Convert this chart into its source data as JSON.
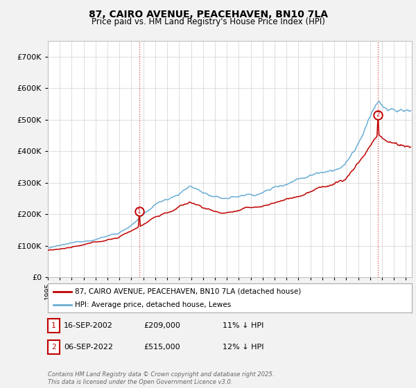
{
  "title": "87, CAIRO AVENUE, PEACEHAVEN, BN10 7LA",
  "subtitle": "Price paid vs. HM Land Registry's House Price Index (HPI)",
  "ylim": [
    0,
    750000
  ],
  "yticks": [
    0,
    100000,
    200000,
    300000,
    400000,
    500000,
    600000,
    700000
  ],
  "hpi_color": "#6aaed6",
  "price_color": "#C00000",
  "marker1_price": 209000,
  "marker2_price": 515000,
  "marker1_year": 2002.708,
  "marker2_year": 2022.708,
  "legend_line1": "87, CAIRO AVENUE, PEACEHAVEN, BN10 7LA (detached house)",
  "legend_line2": "HPI: Average price, detached house, Lewes",
  "annotation1_date": "16-SEP-2002",
  "annotation1_price": "£209,000",
  "annotation1_hpi": "11% ↓ HPI",
  "annotation2_date": "06-SEP-2022",
  "annotation2_price": "£515,000",
  "annotation2_hpi": "12% ↓ HPI",
  "footer": "Contains HM Land Registry data © Crown copyright and database right 2025.\nThis data is licensed under the Open Government Licence v3.0.",
  "background_color": "#f2f2f2",
  "plot_bg_color": "#ffffff",
  "grid_color": "#d0d0d0",
  "title_fontsize": 10,
  "subtitle_fontsize": 8.5,
  "xmin": 1995,
  "xmax": 2025.5
}
